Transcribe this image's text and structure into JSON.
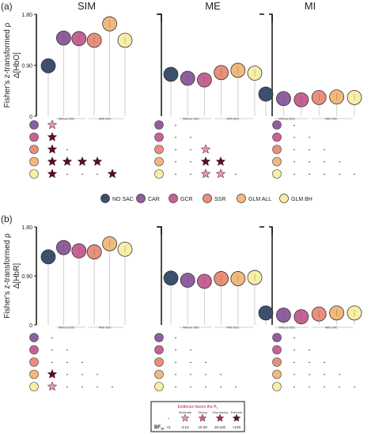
{
  "panel_labels": [
    "(a)",
    "(b)"
  ],
  "groups": [
    "SIM",
    "ME",
    "MI"
  ],
  "y_axis": {
    "title_line1": "Fisher's z-transformed ρ",
    "labels": [
      "Δ[HbO]",
      "Δ[HbR]"
    ],
    "ticks": [
      "1.80",
      "0.90",
      "0"
    ]
  },
  "sdc_labels": {
    "without": "Without SDC",
    "with": "With SDC"
  },
  "dash": "-",
  "methods": [
    {
      "name": "NO SAC",
      "color": "#3d4f6e"
    },
    {
      "name": "CAR",
      "color": "#8e5ea0"
    },
    {
      "name": "GCR",
      "color": "#c96294"
    },
    {
      "name": "SSR",
      "color": "#e8907a"
    },
    {
      "name": "GLM ALL",
      "color": "#f2b97c"
    },
    {
      "name": "GLM  BH",
      "color": "#f7efa6"
    }
  ],
  "chart_data": [
    {
      "type": "scatter",
      "panel": "(a)",
      "ylabel": "Δ[HbO]",
      "ylim": [
        0,
        1.8
      ],
      "categories": [
        "NO SAC",
        "CAR",
        "GCR",
        "SSR",
        "GLM ALL",
        "GLM  BH"
      ],
      "series": [
        {
          "name": "SIM",
          "values": [
            0.89,
            1.38,
            1.37,
            1.34,
            1.63,
            1.34
          ]
        },
        {
          "name": "ME",
          "values": [
            0.74,
            0.67,
            0.64,
            0.77,
            0.81,
            0.76
          ]
        },
        {
          "name": "MI",
          "values": [
            0.39,
            0.31,
            0.29,
            0.33,
            0.34,
            0.33
          ]
        }
      ],
      "bf_grid": {
        "SIM": [
          [
            "moderate",
            "",
            "",
            "",
            "",
            ""
          ],
          [
            "extreme",
            "",
            "",
            "",
            "",
            ""
          ],
          [
            "extreme",
            "-",
            "",
            "",
            "",
            ""
          ],
          [
            "extreme",
            "extreme",
            "extreme",
            "extreme",
            "",
            ""
          ],
          [
            "extreme",
            "-",
            "-",
            "-",
            "extreme",
            ""
          ]
        ],
        "ME": [
          [
            "-",
            "",
            "",
            "",
            "",
            ""
          ],
          [
            "-",
            "-",
            "",
            "",
            "",
            ""
          ],
          [
            "-",
            "-",
            "moderate",
            "",
            "",
            ""
          ],
          [
            "-",
            "-",
            "extreme",
            "extreme",
            "",
            ""
          ],
          [
            "-",
            "-",
            "moderate",
            "moderate",
            "-",
            ""
          ]
        ],
        "MI": [
          [
            "-",
            "",
            "",
            "",
            "",
            ""
          ],
          [
            "-",
            "-",
            "",
            "",
            "",
            ""
          ],
          [
            "-",
            "-",
            "-",
            "",
            "",
            ""
          ],
          [
            "-",
            "-",
            "-",
            "-",
            "",
            ""
          ],
          [
            "-",
            "-",
            "-",
            "-",
            "-",
            ""
          ]
        ]
      }
    },
    {
      "type": "scatter",
      "panel": "(b)",
      "ylabel": "Δ[HbR]",
      "ylim": [
        0,
        1.8
      ],
      "categories": [
        "NO SAC",
        "CAR",
        "GCR",
        "SSR",
        "GLM ALL",
        "GLM  BH"
      ],
      "series": [
        {
          "name": "SIM",
          "values": [
            1.25,
            1.42,
            1.36,
            1.34,
            1.49,
            1.39
          ]
        },
        {
          "name": "ME",
          "values": [
            0.86,
            0.82,
            0.8,
            0.85,
            0.85,
            0.87
          ]
        },
        {
          "name": "MI",
          "values": [
            0.22,
            0.18,
            0.15,
            0.2,
            0.22,
            0.22
          ]
        }
      ],
      "bf_grid": {
        "SIM": [
          [
            "-",
            "",
            "",
            "",
            "",
            ""
          ],
          [
            "-",
            "-",
            "",
            "",
            "",
            ""
          ],
          [
            "-",
            "-",
            "-",
            "",
            "",
            ""
          ],
          [
            "extreme",
            "-",
            "-",
            "-",
            "",
            ""
          ],
          [
            "moderate",
            "-",
            "-",
            "-",
            "-",
            ""
          ]
        ],
        "ME": [
          [
            "-",
            "",
            "",
            "",
            "",
            ""
          ],
          [
            "-",
            "-",
            "",
            "",
            "",
            ""
          ],
          [
            "-",
            "-",
            "-",
            "",
            "",
            ""
          ],
          [
            "-",
            "-",
            "-",
            "-",
            "",
            ""
          ],
          [
            "-",
            "-",
            "-",
            "-",
            "-",
            ""
          ]
        ],
        "MI": [
          [
            "-",
            "",
            "",
            "",
            "",
            ""
          ],
          [
            "-",
            "-",
            "",
            "",
            "",
            ""
          ],
          [
            "-",
            "-",
            "-",
            "",
            "",
            ""
          ],
          [
            "-",
            "-",
            "-",
            "-",
            "",
            ""
          ],
          [
            "-",
            "-",
            "-",
            "-",
            "-",
            ""
          ]
        ]
      }
    }
  ],
  "bf_legend": {
    "title": "Evidence favors the H",
    "title_sub": "1",
    "bf_label": "BF",
    "bf_sub": "10",
    "levels": [
      {
        "key": "none",
        "label": "",
        "range": "<3",
        "color": "#2a1a2a"
      },
      {
        "key": "moderate",
        "label": "Moderate",
        "range": "3-10",
        "color": "#e59aae"
      },
      {
        "key": "strong",
        "label": "Strong",
        "range": "10-30",
        "color": "#c86478"
      },
      {
        "key": "very_strong",
        "label": "Very strong",
        "range": "30-100",
        "color": "#9a2f4c"
      },
      {
        "key": "extreme",
        "label": "Extreme",
        "range": ">100",
        "color": "#5a0f2a"
      }
    ]
  }
}
